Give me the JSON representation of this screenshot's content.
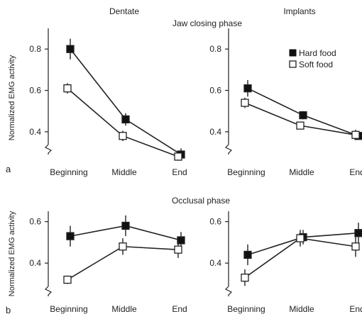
{
  "titles": {
    "dentate": "Dentate",
    "implants": "Implants",
    "jaw_closing": "Jaw closing phase",
    "occlusal": "Occlusal phase"
  },
  "ylabel": "Normalized EMG activity",
  "panel_letters": {
    "a": "a",
    "b": "b"
  },
  "legend": {
    "hard": "Hard food",
    "soft": "Soft food"
  },
  "colors": {
    "hard": "#111111",
    "soft": "#ffffff",
    "axis": "#222222"
  },
  "chart_data": [
    {
      "type": "line",
      "panel": "a",
      "title": "Dentate",
      "categories": [
        "Beginning",
        "Middle",
        "End"
      ],
      "ylim": [
        0.29,
        0.9
      ],
      "yticks": [
        0.4,
        0.6,
        0.8
      ],
      "series": [
        {
          "name": "Hard food",
          "values": [
            0.8,
            0.46,
            0.29
          ],
          "err": [
            0.05,
            0.03,
            0.03
          ]
        },
        {
          "name": "Soft food",
          "values": [
            0.61,
            0.38,
            0.28
          ],
          "err": [
            0.025,
            0.025,
            0.02
          ]
        }
      ]
    },
    {
      "type": "line",
      "panel": "a",
      "title": "Implants",
      "categories": [
        "Beginning",
        "Middle",
        "End"
      ],
      "ylim": [
        0.29,
        0.9
      ],
      "yticks": [
        0.4,
        0.6,
        0.8
      ],
      "series": [
        {
          "name": "Hard food",
          "values": [
            0.61,
            0.48,
            0.38
          ],
          "err": [
            0.04,
            0.02,
            0.015
          ]
        },
        {
          "name": "Soft food",
          "values": [
            0.54,
            0.43,
            0.385
          ],
          "err": [
            0.025,
            0.015,
            0.025
          ]
        }
      ]
    },
    {
      "type": "line",
      "panel": "b",
      "title": "",
      "categories": [
        "Beginning",
        "Middle",
        "End"
      ],
      "ylim": [
        0.24,
        0.65
      ],
      "yticks": [
        0.4,
        0.6
      ],
      "series": [
        {
          "name": "Hard food",
          "values": [
            0.53,
            0.58,
            0.51
          ],
          "err": [
            0.05,
            0.05,
            0.04
          ]
        },
        {
          "name": "Soft food",
          "values": [
            0.32,
            0.48,
            0.465
          ],
          "err": [
            0.02,
            0.04,
            0.04
          ]
        }
      ]
    },
    {
      "type": "line",
      "panel": "b",
      "title": "",
      "categories": [
        "Beginning",
        "Middle",
        "End"
      ],
      "ylim": [
        0.24,
        0.65
      ],
      "yticks": [
        0.4,
        0.6
      ],
      "series": [
        {
          "name": "Hard food",
          "values": [
            0.44,
            0.525,
            0.545
          ],
          "err": [
            0.05,
            0.035,
            0.05
          ]
        },
        {
          "name": "Soft food",
          "values": [
            0.33,
            0.52,
            0.48
          ],
          "err": [
            0.04,
            0.04,
            0.05
          ]
        }
      ]
    }
  ]
}
